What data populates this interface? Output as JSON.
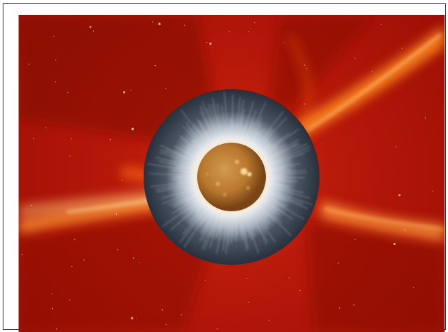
{
  "image": {
    "subject": "sun-corona-composite",
    "colors": {
      "background_red": "#a51005",
      "streamer_orange": "#ff7a14",
      "occulter_disk": "#27303c",
      "corona_white": "#f1f4f8",
      "sun_disk": "#b8782e"
    }
  }
}
